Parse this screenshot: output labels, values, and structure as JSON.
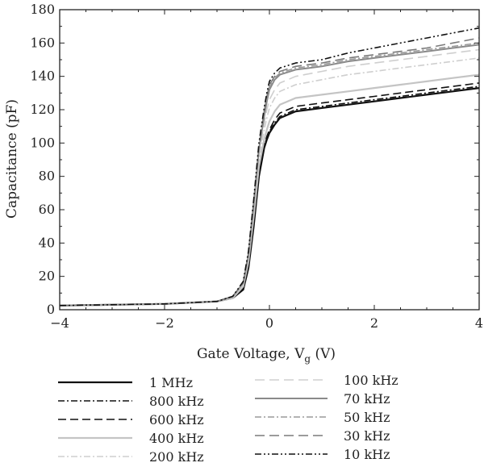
{
  "chart_data": {
    "type": "line",
    "xlabel": "Gate Voltage, V",
    "xlabel_sub": "g",
    "xlabel_unit": " (V)",
    "ylabel": "Capacitance (pF)",
    "xlim": [
      -4,
      4
    ],
    "ylim": [
      0,
      180
    ],
    "xticks": [
      -4,
      -2,
      0,
      2,
      4
    ],
    "yticks": [
      0,
      20,
      40,
      60,
      80,
      100,
      120,
      140,
      160,
      180
    ],
    "xtick_labels": [
      "−4",
      "−2",
      "0",
      "2",
      "4"
    ],
    "ytick_labels": [
      "0",
      "20",
      "40",
      "60",
      "80",
      "100",
      "120",
      "140",
      "160",
      "180"
    ],
    "grid": false,
    "legend_position": "bottom",
    "series": [
      {
        "name": "1 MHz",
        "color": "#111111",
        "dash": "",
        "width": 2.2,
        "x": [
          -4,
          -3,
          -2,
          -1,
          -0.7,
          -0.5,
          -0.4,
          -0.3,
          -0.2,
          -0.1,
          -0.05,
          0,
          0.1,
          0.2,
          0.5,
          1,
          1.5,
          2,
          2.5,
          3,
          3.5,
          4
        ],
        "y": [
          2.5,
          3,
          3.5,
          5,
          7,
          12,
          25,
          50,
          80,
          97,
          102,
          106,
          111,
          115,
          119,
          121,
          123,
          125,
          127,
          129,
          131,
          133
        ]
      },
      {
        "name": "800 kHz",
        "color": "#111111",
        "dash": "8,3,2,3",
        "width": 1.6,
        "x": [
          -4,
          -3,
          -2,
          -1,
          -0.7,
          -0.5,
          -0.4,
          -0.3,
          -0.2,
          -0.1,
          -0.05,
          0,
          0.1,
          0.2,
          0.5,
          1,
          1.5,
          2,
          2.5,
          3,
          3.5,
          4
        ],
        "y": [
          2.5,
          3,
          3.5,
          5,
          7,
          13,
          27,
          52,
          82,
          98,
          103,
          107,
          112,
          116,
          120,
          122,
          124,
          126,
          128,
          130,
          132,
          134
        ]
      },
      {
        "name": "600 kHz",
        "color": "#111111",
        "dash": "10,5",
        "width": 1.6,
        "x": [
          -4,
          -3,
          -2,
          -1,
          -0.7,
          -0.5,
          -0.4,
          -0.3,
          -0.2,
          -0.1,
          -0.05,
          0,
          0.1,
          0.2,
          0.5,
          1,
          1.5,
          2,
          2.5,
          3,
          3.5,
          4
        ],
        "y": [
          2.5,
          3,
          3.5,
          5,
          7,
          13,
          27,
          53,
          83,
          99,
          104,
          108,
          114,
          118,
          122,
          124,
          126,
          128,
          130,
          132,
          134,
          136
        ]
      },
      {
        "name": "400 kHz",
        "color": "#c4c4c4",
        "dash": "",
        "width": 2.2,
        "x": [
          -4,
          -3,
          -2,
          -1,
          -0.7,
          -0.5,
          -0.4,
          -0.3,
          -0.2,
          -0.1,
          -0.05,
          0,
          0.1,
          0.2,
          0.5,
          1,
          1.5,
          2,
          2.5,
          3,
          3.5,
          4
        ],
        "y": [
          2.5,
          3,
          3.5,
          5,
          7,
          14,
          29,
          56,
          86,
          102,
          108,
          113,
          119,
          123,
          127,
          129,
          131,
          133,
          135,
          137,
          139,
          141
        ]
      },
      {
        "name": "200 kHz",
        "color": "#cfcfcf",
        "dash": "8,3,2,3",
        "width": 1.6,
        "x": [
          -4,
          -3,
          -2,
          -1,
          -0.7,
          -0.5,
          -0.4,
          -0.3,
          -0.2,
          -0.1,
          -0.05,
          0,
          0.1,
          0.2,
          0.5,
          1,
          1.5,
          2,
          2.5,
          3,
          3.5,
          4
        ],
        "y": [
          2.5,
          3,
          3.5,
          5,
          8,
          15,
          31,
          59,
          90,
          108,
          115,
          121,
          127,
          131,
          135,
          138,
          141,
          143,
          145,
          147,
          149,
          151
        ]
      },
      {
        "name": "100 kHz",
        "color": "#cfcfcf",
        "dash": "12,6",
        "width": 1.6,
        "x": [
          -4,
          -3,
          -2,
          -1,
          -0.7,
          -0.5,
          -0.4,
          -0.3,
          -0.2,
          -0.1,
          -0.05,
          0,
          0.1,
          0.2,
          0.5,
          1,
          1.5,
          2,
          2.5,
          3,
          3.5,
          4
        ],
        "y": [
          2.5,
          3,
          3.5,
          5,
          8,
          15,
          32,
          61,
          93,
          112,
          120,
          126,
          132,
          136,
          140,
          143,
          146,
          148,
          150,
          152,
          154,
          156
        ]
      },
      {
        "name": "70 kHz",
        "color": "#8a8a8a",
        "dash": "",
        "width": 2.0,
        "x": [
          -4,
          -3,
          -2,
          -1,
          -0.7,
          -0.5,
          -0.4,
          -0.3,
          -0.2,
          -0.1,
          -0.05,
          0,
          0.1,
          0.2,
          0.5,
          1,
          1.5,
          2,
          2.5,
          3,
          3.5,
          4
        ],
        "y": [
          2.5,
          3,
          3.5,
          5,
          8,
          16,
          33,
          63,
          96,
          116,
          125,
          132,
          138,
          141,
          144,
          146,
          149,
          151,
          153,
          155,
          157,
          159
        ]
      },
      {
        "name": "50 kHz",
        "color": "#9a9a9a",
        "dash": "8,3,2,3",
        "width": 1.6,
        "x": [
          -4,
          -3,
          -2,
          -1,
          -0.7,
          -0.5,
          -0.4,
          -0.3,
          -0.2,
          -0.1,
          -0.05,
          0,
          0.1,
          0.2,
          0.5,
          1,
          1.5,
          2,
          2.5,
          3,
          3.5,
          4
        ],
        "y": [
          2.5,
          3,
          3.5,
          5,
          8,
          16,
          33,
          64,
          97,
          118,
          127,
          134,
          139,
          142,
          145,
          147,
          150,
          152,
          154,
          156,
          158,
          160
        ]
      },
      {
        "name": "30 kHz",
        "color": "#7a7a7a",
        "dash": "12,6",
        "width": 1.6,
        "x": [
          -4,
          -3,
          -2,
          -1,
          -0.7,
          -0.5,
          -0.4,
          -0.3,
          -0.2,
          -0.1,
          -0.05,
          0,
          0.1,
          0.2,
          0.5,
          1,
          1.5,
          2,
          2.5,
          3,
          3.5,
          4
        ],
        "y": [
          2.5,
          3,
          3.5,
          5,
          8,
          16,
          34,
          65,
          98,
          119,
          128,
          135,
          140,
          143,
          146,
          148,
          151,
          153,
          155,
          157,
          160,
          163
        ]
      },
      {
        "name": "10 kHz",
        "color": "#111111",
        "dash": "8,3,2,3,2,3",
        "width": 1.6,
        "x": [
          -4,
          -3,
          -2,
          -1,
          -0.7,
          -0.5,
          -0.4,
          -0.3,
          -0.2,
          -0.1,
          -0.05,
          0,
          0.1,
          0.2,
          0.5,
          1,
          1.5,
          2,
          2.5,
          3,
          3.5,
          4
        ],
        "y": [
          2.5,
          3,
          3.5,
          5,
          8,
          17,
          35,
          66,
          100,
          121,
          130,
          137,
          142,
          145,
          148,
          150,
          154,
          157,
          160,
          163,
          166,
          169
        ]
      }
    ]
  }
}
